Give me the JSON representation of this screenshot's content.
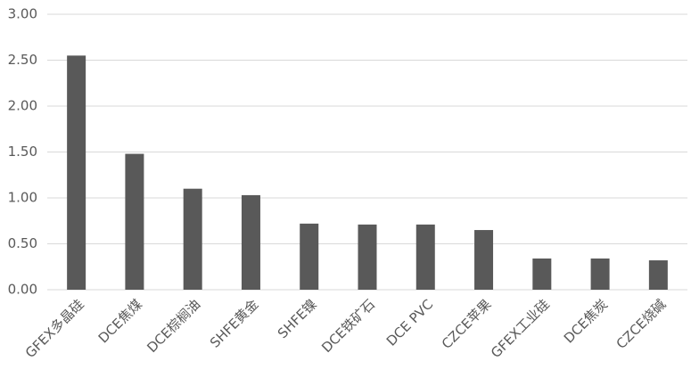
{
  "chart_data": {
    "type": "bar",
    "categories": [
      "GFEX多晶硅",
      "DCE焦煤",
      "DCE棕榈油",
      "SHFE黄金",
      "SHFE镍",
      "DCE铁矿石",
      "DCE PVC",
      "CZCE苹果",
      "GFEX工业硅",
      "DCE焦炭",
      "CZCE烧碱"
    ],
    "values": [
      2.55,
      1.48,
      1.1,
      1.03,
      0.72,
      0.71,
      0.71,
      0.65,
      0.34,
      0.34,
      0.32
    ],
    "color": "#595959",
    "ylim": [
      0,
      3
    ],
    "yticks": [
      {
        "value": 0,
        "label": "0.00"
      },
      {
        "value": 0.5,
        "label": "0.50"
      },
      {
        "value": 1,
        "label": "1.00"
      },
      {
        "value": 1.5,
        "label": "1.50"
      },
      {
        "value": 2,
        "label": "2.00"
      },
      {
        "value": 2.5,
        "label": "2.50"
      },
      {
        "value": 3,
        "label": "3.00"
      }
    ],
    "grid": true
  }
}
